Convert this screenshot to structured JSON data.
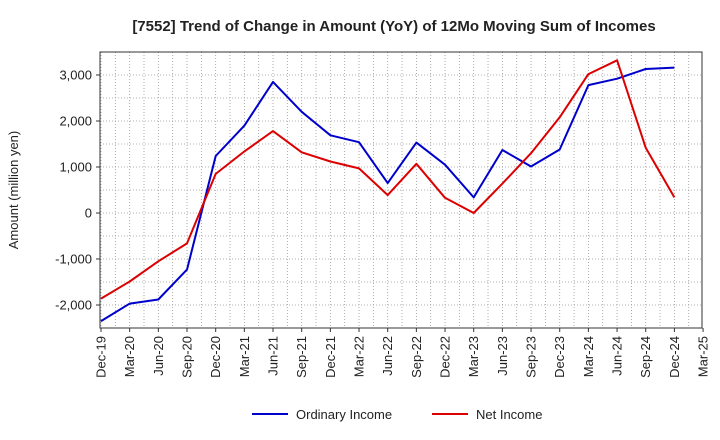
{
  "chart_data": {
    "type": "line",
    "title": "[7552]  Trend of Change in Amount (YoY) of 12Mo Moving Sum of Incomes",
    "xlabel": "",
    "ylabel": "Amount (million yen)",
    "ylim": [
      -2500,
      3500
    ],
    "yticks": [
      -2000,
      -1000,
      0,
      1000,
      2000,
      3000
    ],
    "ytick_labels": [
      "-2,000",
      "-1,000",
      "0",
      "1,000",
      "2,000",
      "3,000"
    ],
    "x": [
      "Dec-19",
      "Mar-20",
      "Jun-20",
      "Sep-20",
      "Dec-20",
      "Mar-21",
      "Jun-21",
      "Sep-21",
      "Dec-21",
      "Mar-22",
      "Jun-22",
      "Sep-22",
      "Dec-22",
      "Mar-23",
      "Jun-23",
      "Sep-23",
      "Dec-23",
      "Mar-24",
      "Jun-24",
      "Sep-24",
      "Dec-24",
      "Mar-25"
    ],
    "grid": true,
    "legend_position": "bottom",
    "series": [
      {
        "name": "Ordinary Income",
        "color": "#0000cc",
        "values": [
          -2350,
          -1970,
          -1880,
          -1230,
          1240,
          1900,
          2850,
          2200,
          1690,
          1540,
          650,
          1530,
          1050,
          340,
          1370,
          1010,
          1380,
          2780,
          2920,
          3130,
          3160,
          null
        ]
      },
      {
        "name": "Net Income",
        "color": "#dd0000",
        "values": [
          -1860,
          -1490,
          -1050,
          -660,
          850,
          1340,
          1780,
          1320,
          1120,
          970,
          390,
          1070,
          330,
          0,
          640,
          1300,
          2080,
          3020,
          3320,
          1420,
          340,
          null
        ]
      }
    ]
  }
}
